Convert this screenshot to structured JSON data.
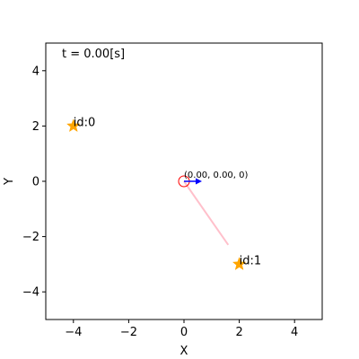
{
  "chart_data": {
    "type": "scatter",
    "xlabel": "X",
    "ylabel": "Y",
    "xlim": [
      -5,
      5
    ],
    "ylim": [
      -5,
      5
    ],
    "xticks": [
      -4,
      -2,
      0,
      2,
      4
    ],
    "yticks": [
      -4,
      -2,
      0,
      2,
      4
    ],
    "grid": false,
    "time_text": "t = 0.00[s]",
    "landmarks": [
      {
        "label": "id:0",
        "x": -4,
        "y": 2
      },
      {
        "label": "id:1",
        "x": 2,
        "y": -3
      }
    ],
    "robot": {
      "x": 0,
      "y": 0,
      "theta": 0,
      "pose_text": "(0.00, 0.00, 0)"
    },
    "observation_lines": [
      {
        "from": [
          0,
          0
        ],
        "to": [
          1.6,
          -2.3
        ]
      }
    ],
    "colors": {
      "landmark": "#ffa500",
      "robot": "#ff0000",
      "heading": "#0000ff",
      "observation": "#ffc0cb"
    }
  }
}
